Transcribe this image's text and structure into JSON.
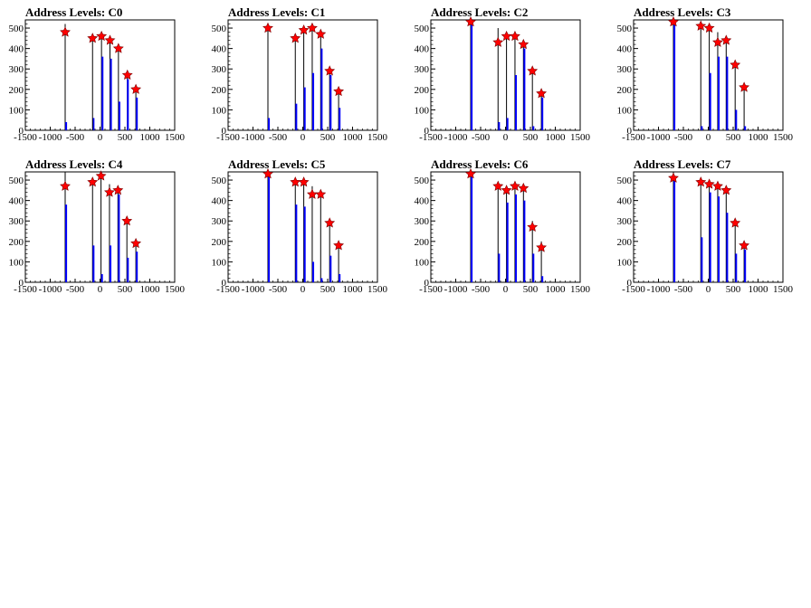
{
  "chart_data": [
    {
      "type": "bar",
      "title": "Address Levels: C0",
      "xlim": [
        -1500,
        1500
      ],
      "ylim": [
        0,
        540
      ],
      "xticks": [
        -1500,
        -1000,
        -500,
        0,
        500,
        1000,
        1500
      ],
      "yticks": [
        0,
        100,
        200,
        300,
        400,
        500
      ],
      "bars": [
        {
          "x": -700,
          "y": 520,
          "color": "black"
        },
        {
          "x": -680,
          "y": 40,
          "color": "blue"
        },
        {
          "x": -130,
          "y": 60,
          "color": "blue"
        },
        {
          "x": -150,
          "y": 450,
          "color": "black"
        },
        {
          "x": 30,
          "y": 470,
          "color": "black"
        },
        {
          "x": 50,
          "y": 360,
          "color": "blue"
        },
        {
          "x": 200,
          "y": 460,
          "color": "black"
        },
        {
          "x": 220,
          "y": 350,
          "color": "blue"
        },
        {
          "x": 370,
          "y": 420,
          "color": "black"
        },
        {
          "x": 390,
          "y": 140,
          "color": "blue"
        },
        {
          "x": 550,
          "y": 280,
          "color": "black"
        },
        {
          "x": 560,
          "y": 250,
          "color": "blue"
        },
        {
          "x": 720,
          "y": 200,
          "color": "black"
        },
        {
          "x": 740,
          "y": 160,
          "color": "blue"
        }
      ],
      "peaks": [
        [
          -700,
          480
        ],
        [
          -150,
          450
        ],
        [
          30,
          460
        ],
        [
          200,
          440
        ],
        [
          370,
          400
        ],
        [
          550,
          270
        ],
        [
          720,
          200
        ]
      ]
    },
    {
      "type": "bar",
      "title": "Address Levels: C1",
      "xlim": [
        -1500,
        1500
      ],
      "ylim": [
        0,
        540
      ],
      "xticks": [
        -1500,
        -1000,
        -500,
        0,
        500,
        1000,
        1500
      ],
      "yticks": [
        0,
        100,
        200,
        300,
        400,
        500
      ],
      "bars": [
        {
          "x": -700,
          "y": 520,
          "color": "black"
        },
        {
          "x": -680,
          "y": 60,
          "color": "blue"
        },
        {
          "x": -150,
          "y": 460,
          "color": "black"
        },
        {
          "x": -130,
          "y": 130,
          "color": "blue"
        },
        {
          "x": 20,
          "y": 500,
          "color": "black"
        },
        {
          "x": 40,
          "y": 210,
          "color": "blue"
        },
        {
          "x": 190,
          "y": 510,
          "color": "black"
        },
        {
          "x": 210,
          "y": 280,
          "color": "blue"
        },
        {
          "x": 360,
          "y": 480,
          "color": "black"
        },
        {
          "x": 380,
          "y": 400,
          "color": "blue"
        },
        {
          "x": 540,
          "y": 300,
          "color": "black"
        },
        {
          "x": 560,
          "y": 270,
          "color": "blue"
        },
        {
          "x": 720,
          "y": 200,
          "color": "black"
        },
        {
          "x": 740,
          "y": 110,
          "color": "blue"
        }
      ],
      "peaks": [
        [
          -700,
          500
        ],
        [
          -150,
          450
        ],
        [
          20,
          490
        ],
        [
          190,
          500
        ],
        [
          360,
          470
        ],
        [
          540,
          290
        ],
        [
          720,
          190
        ]
      ]
    },
    {
      "type": "bar",
      "title": "Address Levels: C2",
      "xlim": [
        -1500,
        1500
      ],
      "ylim": [
        0,
        540
      ],
      "xticks": [
        -1500,
        -1000,
        -500,
        0,
        500,
        1000,
        1500
      ],
      "yticks": [
        0,
        100,
        200,
        300,
        400,
        500
      ],
      "bars": [
        {
          "x": -700,
          "y": 540,
          "color": "black"
        },
        {
          "x": -680,
          "y": 520,
          "color": "blue"
        },
        {
          "x": -150,
          "y": 500,
          "color": "black"
        },
        {
          "x": -130,
          "y": 40,
          "color": "blue"
        },
        {
          "x": 20,
          "y": 480,
          "color": "black"
        },
        {
          "x": 40,
          "y": 60,
          "color": "blue"
        },
        {
          "x": 190,
          "y": 470,
          "color": "black"
        },
        {
          "x": 210,
          "y": 270,
          "color": "blue"
        },
        {
          "x": 360,
          "y": 440,
          "color": "black"
        },
        {
          "x": 380,
          "y": 400,
          "color": "blue"
        },
        {
          "x": 540,
          "y": 300,
          "color": "black"
        },
        {
          "x": 560,
          "y": 20,
          "color": "blue"
        },
        {
          "x": 720,
          "y": 200,
          "color": "black"
        },
        {
          "x": 740,
          "y": 160,
          "color": "blue"
        }
      ],
      "peaks": [
        [
          -700,
          530
        ],
        [
          -150,
          430
        ],
        [
          20,
          460
        ],
        [
          190,
          460
        ],
        [
          360,
          420
        ],
        [
          540,
          290
        ],
        [
          720,
          180
        ]
      ]
    },
    {
      "type": "bar",
      "title": "Address Levels: C3",
      "xlim": [
        -1500,
        1500
      ],
      "ylim": [
        0,
        540
      ],
      "xticks": [
        -1500,
        -1000,
        -500,
        0,
        500,
        1000,
        1500
      ],
      "yticks": [
        0,
        100,
        200,
        300,
        400,
        500
      ],
      "bars": [
        {
          "x": -700,
          "y": 540,
          "color": "black"
        },
        {
          "x": -680,
          "y": 520,
          "color": "blue"
        },
        {
          "x": -150,
          "y": 520,
          "color": "black"
        },
        {
          "x": -130,
          "y": 20,
          "color": "blue"
        },
        {
          "x": 20,
          "y": 510,
          "color": "black"
        },
        {
          "x": 40,
          "y": 280,
          "color": "blue"
        },
        {
          "x": 190,
          "y": 480,
          "color": "black"
        },
        {
          "x": 210,
          "y": 360,
          "color": "blue"
        },
        {
          "x": 360,
          "y": 450,
          "color": "black"
        },
        {
          "x": 380,
          "y": 360,
          "color": "blue"
        },
        {
          "x": 540,
          "y": 340,
          "color": "black"
        },
        {
          "x": 560,
          "y": 100,
          "color": "blue"
        },
        {
          "x": 720,
          "y": 220,
          "color": "black"
        },
        {
          "x": 740,
          "y": 20,
          "color": "blue"
        }
      ],
      "peaks": [
        [
          -700,
          530
        ],
        [
          -150,
          510
        ],
        [
          20,
          500
        ],
        [
          190,
          430
        ],
        [
          360,
          440
        ],
        [
          540,
          320
        ],
        [
          720,
          210
        ]
      ]
    },
    {
      "type": "bar",
      "title": "Address Levels: C4",
      "xlim": [
        -1500,
        1500
      ],
      "ylim": [
        0,
        540
      ],
      "xticks": [
        -1500,
        -1000,
        -500,
        0,
        500,
        1000,
        1500
      ],
      "yticks": [
        0,
        100,
        200,
        300,
        400,
        500
      ],
      "bars": [
        {
          "x": -700,
          "y": 540,
          "color": "black"
        },
        {
          "x": -680,
          "y": 380,
          "color": "blue"
        },
        {
          "x": -150,
          "y": 500,
          "color": "black"
        },
        {
          "x": -130,
          "y": 180,
          "color": "blue"
        },
        {
          "x": 20,
          "y": 520,
          "color": "black"
        },
        {
          "x": 40,
          "y": 40,
          "color": "blue"
        },
        {
          "x": 190,
          "y": 480,
          "color": "black"
        },
        {
          "x": 210,
          "y": 180,
          "color": "blue"
        },
        {
          "x": 360,
          "y": 470,
          "color": "black"
        },
        {
          "x": 380,
          "y": 430,
          "color": "blue"
        },
        {
          "x": 540,
          "y": 320,
          "color": "black"
        },
        {
          "x": 560,
          "y": 120,
          "color": "blue"
        },
        {
          "x": 720,
          "y": 200,
          "color": "black"
        },
        {
          "x": 740,
          "y": 150,
          "color": "blue"
        }
      ],
      "peaks": [
        [
          -700,
          470
        ],
        [
          -150,
          490
        ],
        [
          20,
          520
        ],
        [
          190,
          440
        ],
        [
          360,
          450
        ],
        [
          540,
          300
        ],
        [
          720,
          190
        ]
      ]
    },
    {
      "type": "bar",
      "title": "Address Levels: C5",
      "xlim": [
        -1500,
        1500
      ],
      "ylim": [
        0,
        540
      ],
      "xticks": [
        -1500,
        -1000,
        -500,
        0,
        500,
        1000,
        1500
      ],
      "yticks": [
        0,
        100,
        200,
        300,
        400,
        500
      ],
      "bars": [
        {
          "x": -700,
          "y": 540,
          "color": "black"
        },
        {
          "x": -680,
          "y": 520,
          "color": "blue"
        },
        {
          "x": -150,
          "y": 490,
          "color": "black"
        },
        {
          "x": -130,
          "y": 380,
          "color": "blue"
        },
        {
          "x": 20,
          "y": 500,
          "color": "black"
        },
        {
          "x": 40,
          "y": 370,
          "color": "blue"
        },
        {
          "x": 190,
          "y": 470,
          "color": "black"
        },
        {
          "x": 210,
          "y": 100,
          "color": "blue"
        },
        {
          "x": 360,
          "y": 440,
          "color": "black"
        },
        {
          "x": 380,
          "y": 20,
          "color": "blue"
        },
        {
          "x": 540,
          "y": 300,
          "color": "black"
        },
        {
          "x": 560,
          "y": 130,
          "color": "blue"
        },
        {
          "x": 720,
          "y": 200,
          "color": "black"
        },
        {
          "x": 740,
          "y": 40,
          "color": "blue"
        }
      ],
      "peaks": [
        [
          -700,
          530
        ],
        [
          -150,
          490
        ],
        [
          20,
          490
        ],
        [
          190,
          430
        ],
        [
          360,
          430
        ],
        [
          540,
          290
        ],
        [
          720,
          180
        ]
      ]
    },
    {
      "type": "bar",
      "title": "Address Levels: C6",
      "xlim": [
        -1500,
        1500
      ],
      "ylim": [
        0,
        540
      ],
      "xticks": [
        -1500,
        -1000,
        -500,
        0,
        500,
        1000,
        1500
      ],
      "yticks": [
        0,
        100,
        200,
        300,
        400,
        500
      ],
      "bars": [
        {
          "x": -700,
          "y": 540,
          "color": "black"
        },
        {
          "x": -680,
          "y": 520,
          "color": "blue"
        },
        {
          "x": -150,
          "y": 480,
          "color": "black"
        },
        {
          "x": -130,
          "y": 140,
          "color": "blue"
        },
        {
          "x": 20,
          "y": 460,
          "color": "black"
        },
        {
          "x": 40,
          "y": 390,
          "color": "blue"
        },
        {
          "x": 190,
          "y": 490,
          "color": "black"
        },
        {
          "x": 210,
          "y": 430,
          "color": "blue"
        },
        {
          "x": 360,
          "y": 480,
          "color": "black"
        },
        {
          "x": 380,
          "y": 400,
          "color": "blue"
        },
        {
          "x": 540,
          "y": 300,
          "color": "black"
        },
        {
          "x": 560,
          "y": 140,
          "color": "blue"
        },
        {
          "x": 720,
          "y": 200,
          "color": "black"
        },
        {
          "x": 740,
          "y": 30,
          "color": "blue"
        }
      ],
      "peaks": [
        [
          -700,
          530
        ],
        [
          -150,
          470
        ],
        [
          20,
          450
        ],
        [
          190,
          470
        ],
        [
          360,
          460
        ],
        [
          540,
          270
        ],
        [
          720,
          170
        ]
      ]
    },
    {
      "type": "bar",
      "title": "Address Levels: C7",
      "xlim": [
        -1500,
        1500
      ],
      "ylim": [
        0,
        540
      ],
      "xticks": [
        -1500,
        -1000,
        -500,
        0,
        500,
        1000,
        1500
      ],
      "yticks": [
        0,
        100,
        200,
        300,
        400,
        500
      ],
      "bars": [
        {
          "x": -700,
          "y": 540,
          "color": "black"
        },
        {
          "x": -680,
          "y": 500,
          "color": "blue"
        },
        {
          "x": -150,
          "y": 500,
          "color": "black"
        },
        {
          "x": -130,
          "y": 220,
          "color": "blue"
        },
        {
          "x": 20,
          "y": 490,
          "color": "black"
        },
        {
          "x": 40,
          "y": 440,
          "color": "blue"
        },
        {
          "x": 190,
          "y": 480,
          "color": "black"
        },
        {
          "x": 210,
          "y": 420,
          "color": "blue"
        },
        {
          "x": 360,
          "y": 460,
          "color": "black"
        },
        {
          "x": 380,
          "y": 340,
          "color": "blue"
        },
        {
          "x": 540,
          "y": 300,
          "color": "black"
        },
        {
          "x": 560,
          "y": 140,
          "color": "blue"
        },
        {
          "x": 720,
          "y": 200,
          "color": "black"
        },
        {
          "x": 740,
          "y": 160,
          "color": "blue"
        }
      ],
      "peaks": [
        [
          -700,
          510
        ],
        [
          -150,
          490
        ],
        [
          20,
          480
        ],
        [
          190,
          470
        ],
        [
          360,
          450
        ],
        [
          540,
          290
        ],
        [
          720,
          180
        ]
      ]
    }
  ],
  "colors": {
    "bar_primary": "#0000ff",
    "bar_secondary": "#000000",
    "peak_marker": "#ff0000",
    "axis": "#000000"
  }
}
